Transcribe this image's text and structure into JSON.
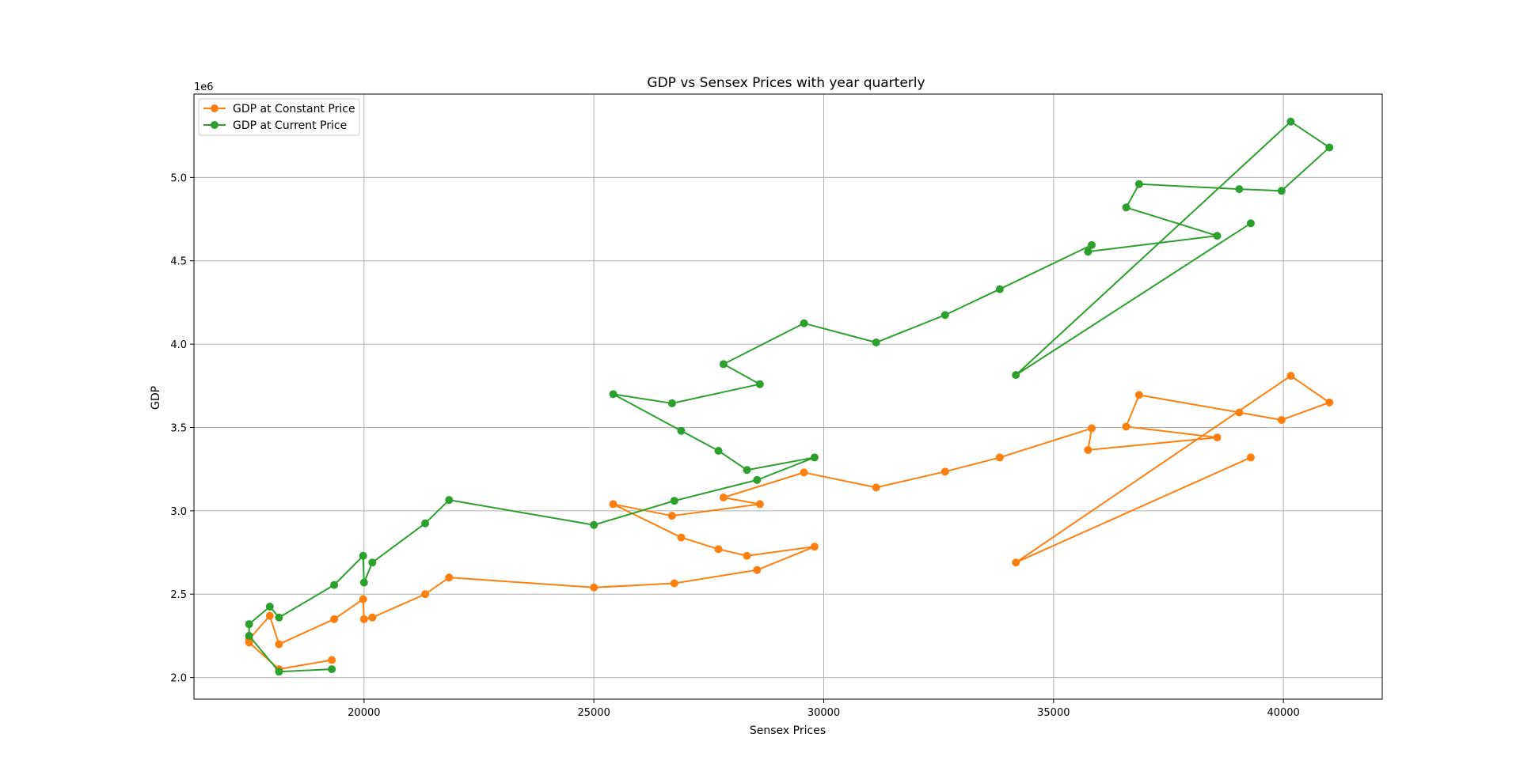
{
  "chart_data": {
    "type": "line",
    "title": "GDP vs Sensex Prices with year quarterly",
    "xlabel": "Sensex Prices",
    "ylabel": "GDP",
    "y_offset_text": "1e6",
    "xlim": [
      16300,
      42150
    ],
    "ylim": [
      1870000,
      5500000
    ],
    "x_ticks": [
      20000,
      25000,
      30000,
      35000,
      40000
    ],
    "x_tick_labels": [
      "20000",
      "25000",
      "30000",
      "35000",
      "40000"
    ],
    "y_ticks": [
      2000000,
      2500000,
      3000000,
      3500000,
      4000000,
      4500000,
      5000000
    ],
    "y_tick_labels": [
      "2.0",
      "2.5",
      "3.0",
      "3.5",
      "4.0",
      "4.5",
      "5.0"
    ],
    "grid": true,
    "legend_position": "upper-left",
    "x": [
      19300,
      18150,
      17500,
      17500,
      17950,
      18150,
      19350,
      19980,
      20000,
      20180,
      21330,
      21850,
      25000,
      26750,
      28550,
      29800,
      28330,
      27710,
      26900,
      25420,
      26700,
      28610,
      27820,
      29570,
      31140,
      32640,
      33830,
      35830,
      35750,
      38560,
      36580,
      36860,
      39040,
      39960,
      41000,
      40160,
      34180,
      39290
    ],
    "series": [
      {
        "name": "GDP at Constant Price",
        "color": "#ff7f0e",
        "values": [
          2105000,
          2050000,
          2210000,
          2230000,
          2370000,
          2200000,
          2350000,
          2470000,
          2350000,
          2360000,
          2500000,
          2600000,
          2540000,
          2565000,
          2645000,
          2785000,
          2730000,
          2770000,
          2840000,
          3040000,
          2970000,
          3040000,
          3080000,
          3230000,
          3140000,
          3235000,
          3320000,
          3495000,
          3365000,
          3440000,
          3505000,
          3695000,
          3590000,
          3545000,
          3650000,
          3810000,
          2690000,
          3320000
        ]
      },
      {
        "name": "GDP at Current Price",
        "color": "#2ca02c",
        "values": [
          2050000,
          2035000,
          2250000,
          2320000,
          2425000,
          2360000,
          2555000,
          2730000,
          2570000,
          2690000,
          2925000,
          3065000,
          2915000,
          3060000,
          3185000,
          3320000,
          3245000,
          3360000,
          3480000,
          3700000,
          3645000,
          3760000,
          3880000,
          4125000,
          4010000,
          4175000,
          4330000,
          4595000,
          4555000,
          4650000,
          4820000,
          4960000,
          4930000,
          4920000,
          5180000,
          5335000,
          3815000,
          4725000
        ]
      }
    ]
  }
}
